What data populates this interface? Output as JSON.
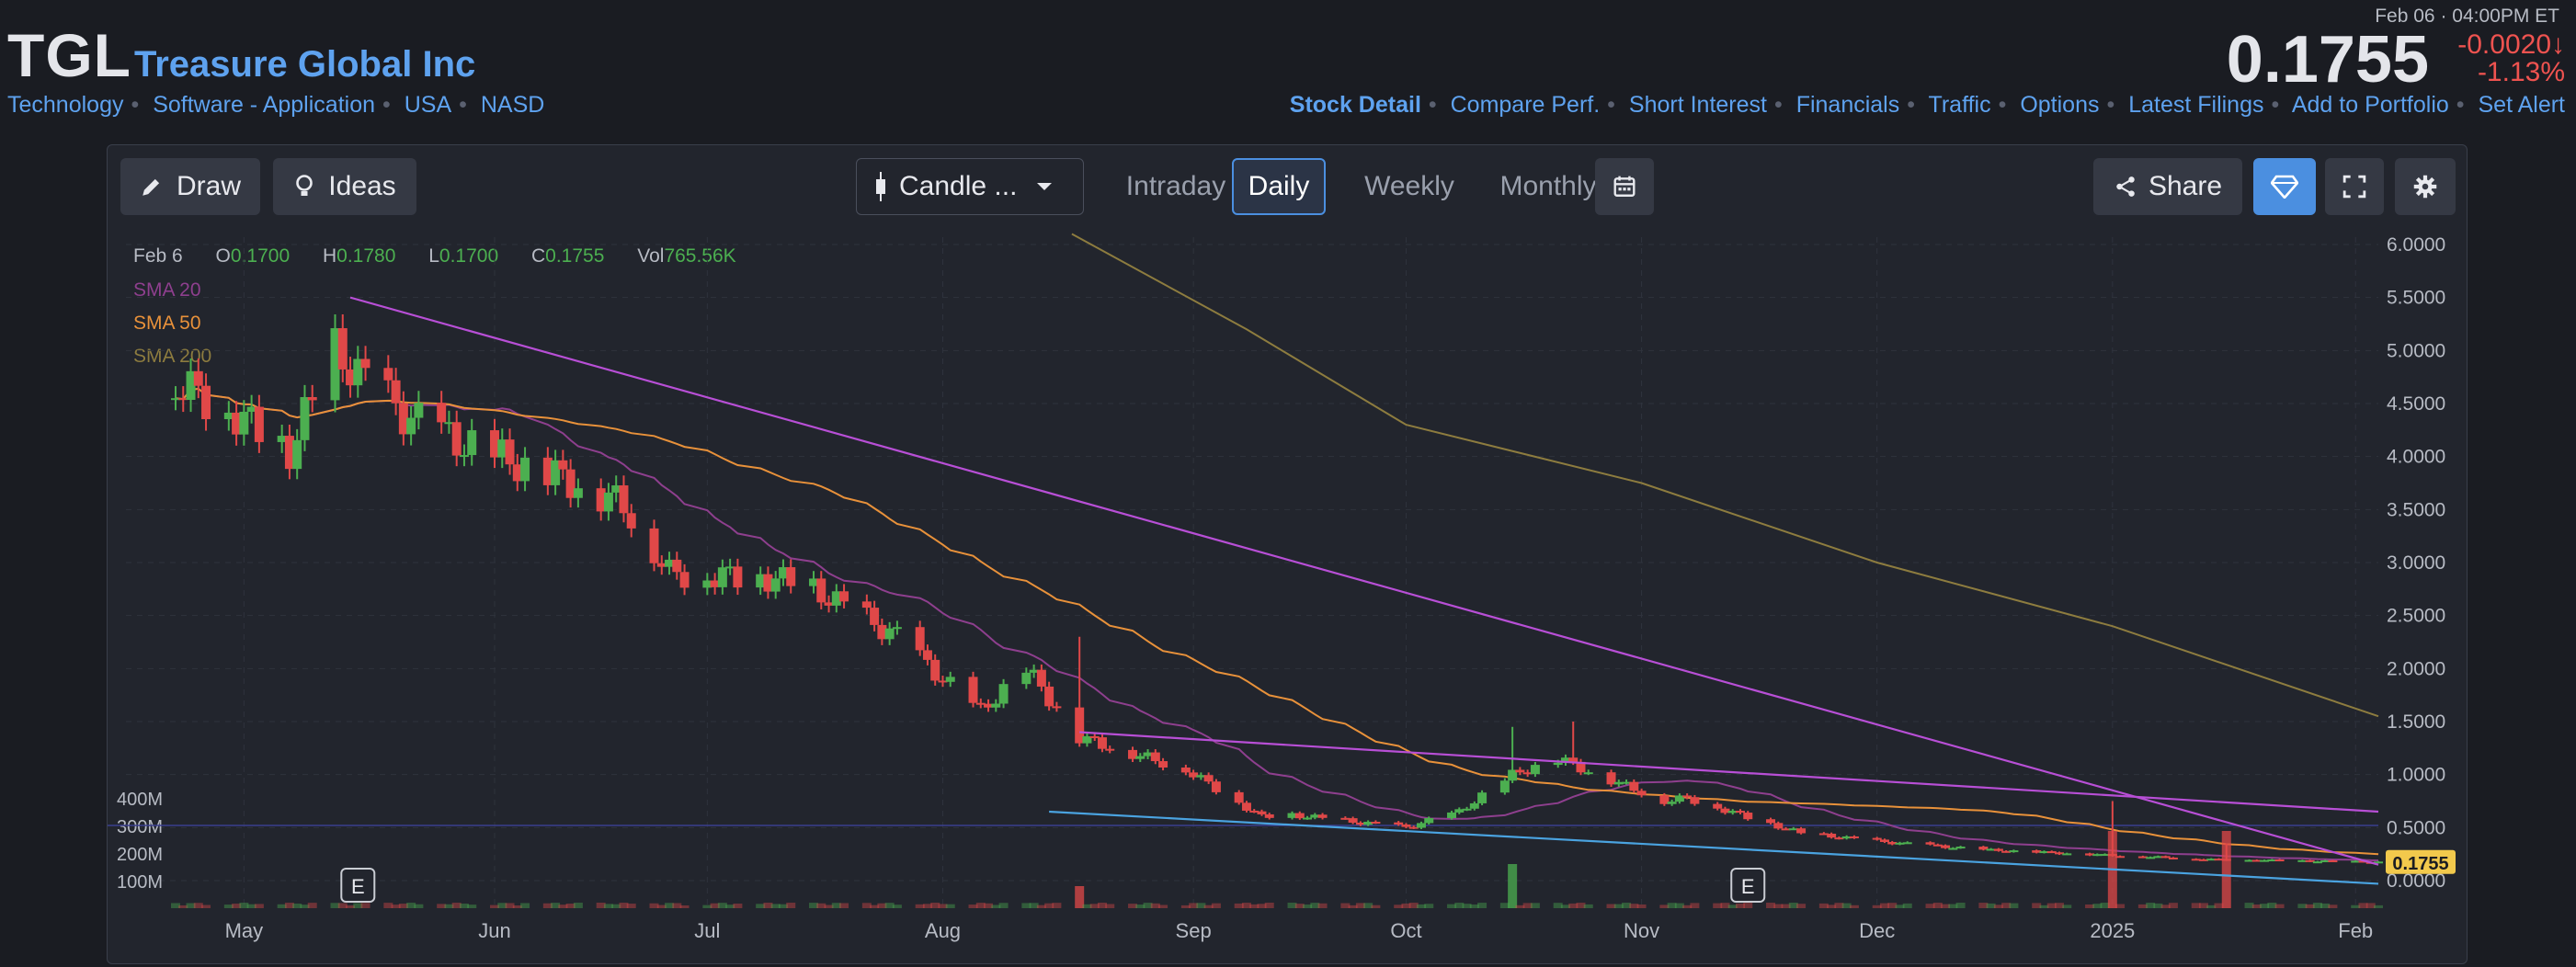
{
  "header": {
    "ticker": "TGL",
    "company": "Treasure Global Inc",
    "tags": [
      "Technology",
      "Software - Application",
      "USA",
      "NASD"
    ],
    "datetime": "Feb 06 · 04:00PM ET",
    "price": "0.1755",
    "change": "-0.0020",
    "change_arrow": "↓",
    "change_pct": "-1.13%",
    "nav": [
      "Stock Detail",
      "Compare Perf.",
      "Short Interest",
      "Financials",
      "Traffic",
      "Options",
      "Latest Filings",
      "Add to Portfolio",
      "Set Alert"
    ]
  },
  "toolbar": {
    "draw": "Draw",
    "ideas": "Ideas",
    "chart_type": "Candle ...",
    "timeframes": [
      "Intraday",
      "Daily",
      "Weekly",
      "Monthly"
    ],
    "active_timeframe": "Daily",
    "share": "Share"
  },
  "colors": {
    "up": "#4caf50",
    "down": "#e04848",
    "sma20": "#8e3f8e",
    "sma50": "#e8913a",
    "sma200": "#8d7c3f",
    "trend": "#b84fd6",
    "support": "#4aa3e0",
    "accent": "#4b8fe0",
    "label_price": "#f2c94c"
  },
  "chart_data": {
    "type": "candlestick",
    "ohlc_label": {
      "date": "Feb 6",
      "o": "0.1700",
      "h": "0.1780",
      "l": "0.1700",
      "c": "0.1755",
      "vol": "765.56K"
    },
    "legend": [
      "SMA 20",
      "SMA 50",
      "SMA 200"
    ],
    "y_ticks": [
      "6.0000",
      "5.5000",
      "5.0000",
      "4.5000",
      "4.0000",
      "3.5000",
      "3.0000",
      "2.5000",
      "2.0000",
      "1.5000",
      "1.0000",
      "0.5000",
      "0.0000"
    ],
    "y_tick_values": [
      6,
      5.5,
      5,
      4.5,
      4,
      3.5,
      3,
      2.5,
      2,
      1.5,
      1,
      0.5,
      0
    ],
    "ylim": [
      0,
      6
    ],
    "volume_ticks": [
      "400M",
      "300M",
      "200M",
      "100M"
    ],
    "volume_tick_values": [
      400,
      300,
      200,
      100
    ],
    "x_ticks": [
      "May",
      "Jun",
      "Jul",
      "Aug",
      "Sep",
      "Oct",
      "Nov",
      "Dec",
      "2025",
      "Feb"
    ],
    "x_tick_dates": [
      "2024-05-01",
      "2024-06-03",
      "2024-07-01",
      "2024-08-01",
      "2024-09-03",
      "2024-10-01",
      "2024-11-01",
      "2024-12-02",
      "2025-01-02",
      "2025-02-03"
    ],
    "date_range": [
      "2024-04-22",
      "2025-02-06"
    ],
    "last_price_label": "0.1755",
    "earnings_marker": "E",
    "earnings_dates": [
      "2024-05-16",
      "2024-11-15"
    ],
    "anchors": [
      [
        "2024-04-22",
        4.7
      ],
      [
        "2024-04-30",
        4.4
      ],
      [
        "2024-05-07",
        4.05
      ],
      [
        "2024-05-13",
        5.0
      ],
      [
        "2024-05-17",
        4.7
      ],
      [
        "2024-05-23",
        4.35
      ],
      [
        "2024-06-01",
        4.05
      ],
      [
        "2024-06-12",
        3.8
      ],
      [
        "2024-06-20",
        3.55
      ],
      [
        "2024-06-26",
        2.9
      ],
      [
        "2024-07-10",
        2.85
      ],
      [
        "2024-07-15",
        2.75
      ],
      [
        "2024-07-26",
        2.3
      ],
      [
        "2024-08-01",
        1.9
      ],
      [
        "2024-08-06",
        1.6
      ],
      [
        "2024-08-12",
        2.0
      ],
      [
        "2024-08-19",
        1.35
      ],
      [
        "2024-09-02",
        1.05
      ],
      [
        "2024-09-12",
        0.6
      ],
      [
        "2024-09-16",
        0.62
      ],
      [
        "2024-10-01",
        0.5
      ],
      [
        "2024-10-08",
        0.65
      ],
      [
        "2024-10-15",
        1.0
      ],
      [
        "2024-10-21",
        1.15
      ],
      [
        "2024-10-28",
        0.95
      ],
      [
        "2024-11-04",
        0.75
      ],
      [
        "2024-11-07",
        0.78
      ],
      [
        "2024-11-14",
        0.62
      ],
      [
        "2024-11-22",
        0.45
      ],
      [
        "2024-12-02",
        0.37
      ],
      [
        "2024-12-16",
        0.29
      ],
      [
        "2025-01-15",
        0.2
      ],
      [
        "2025-02-06",
        0.1755
      ]
    ],
    "spikes": [
      [
        "2024-08-19",
        2.3,
        "down"
      ],
      [
        "2024-10-15",
        1.45,
        "up"
      ],
      [
        "2024-10-23",
        1.5,
        "down"
      ],
      [
        "2025-01-02",
        0.75,
        "down"
      ],
      [
        "2025-01-17",
        0.35,
        "down"
      ]
    ],
    "volume_spikes": [
      [
        "2024-08-19",
        80
      ],
      [
        "2024-10-15",
        160
      ],
      [
        "2025-01-02",
        280
      ],
      [
        "2025-01-17",
        280
      ]
    ],
    "volume_baseline": 20,
    "sma200_points": [
      [
        "2024-08-18",
        6.1
      ],
      [
        "2024-09-10",
        5.2
      ],
      [
        "2024-10-01",
        4.3
      ],
      [
        "2024-11-01",
        3.75
      ],
      [
        "2024-12-02",
        3.0
      ],
      [
        "2025-01-02",
        2.4
      ],
      [
        "2025-02-06",
        1.55
      ]
    ],
    "trendlines": [
      {
        "name": "upper-trendline",
        "from": [
          "2024-05-15",
          5.5
        ],
        "to": [
          "2025-02-06",
          0.15
        ],
        "color": "trend"
      },
      {
        "name": "mid-trendline",
        "from": [
          "2024-08-19",
          1.4
        ],
        "to": [
          "2025-02-06",
          0.65
        ],
        "color": "trend"
      },
      {
        "name": "support-trendline",
        "from": [
          "2024-08-15",
          0.65
        ],
        "to": [
          "2025-02-06",
          -0.03
        ],
        "color": "support"
      }
    ],
    "volume_hline": 300
  }
}
